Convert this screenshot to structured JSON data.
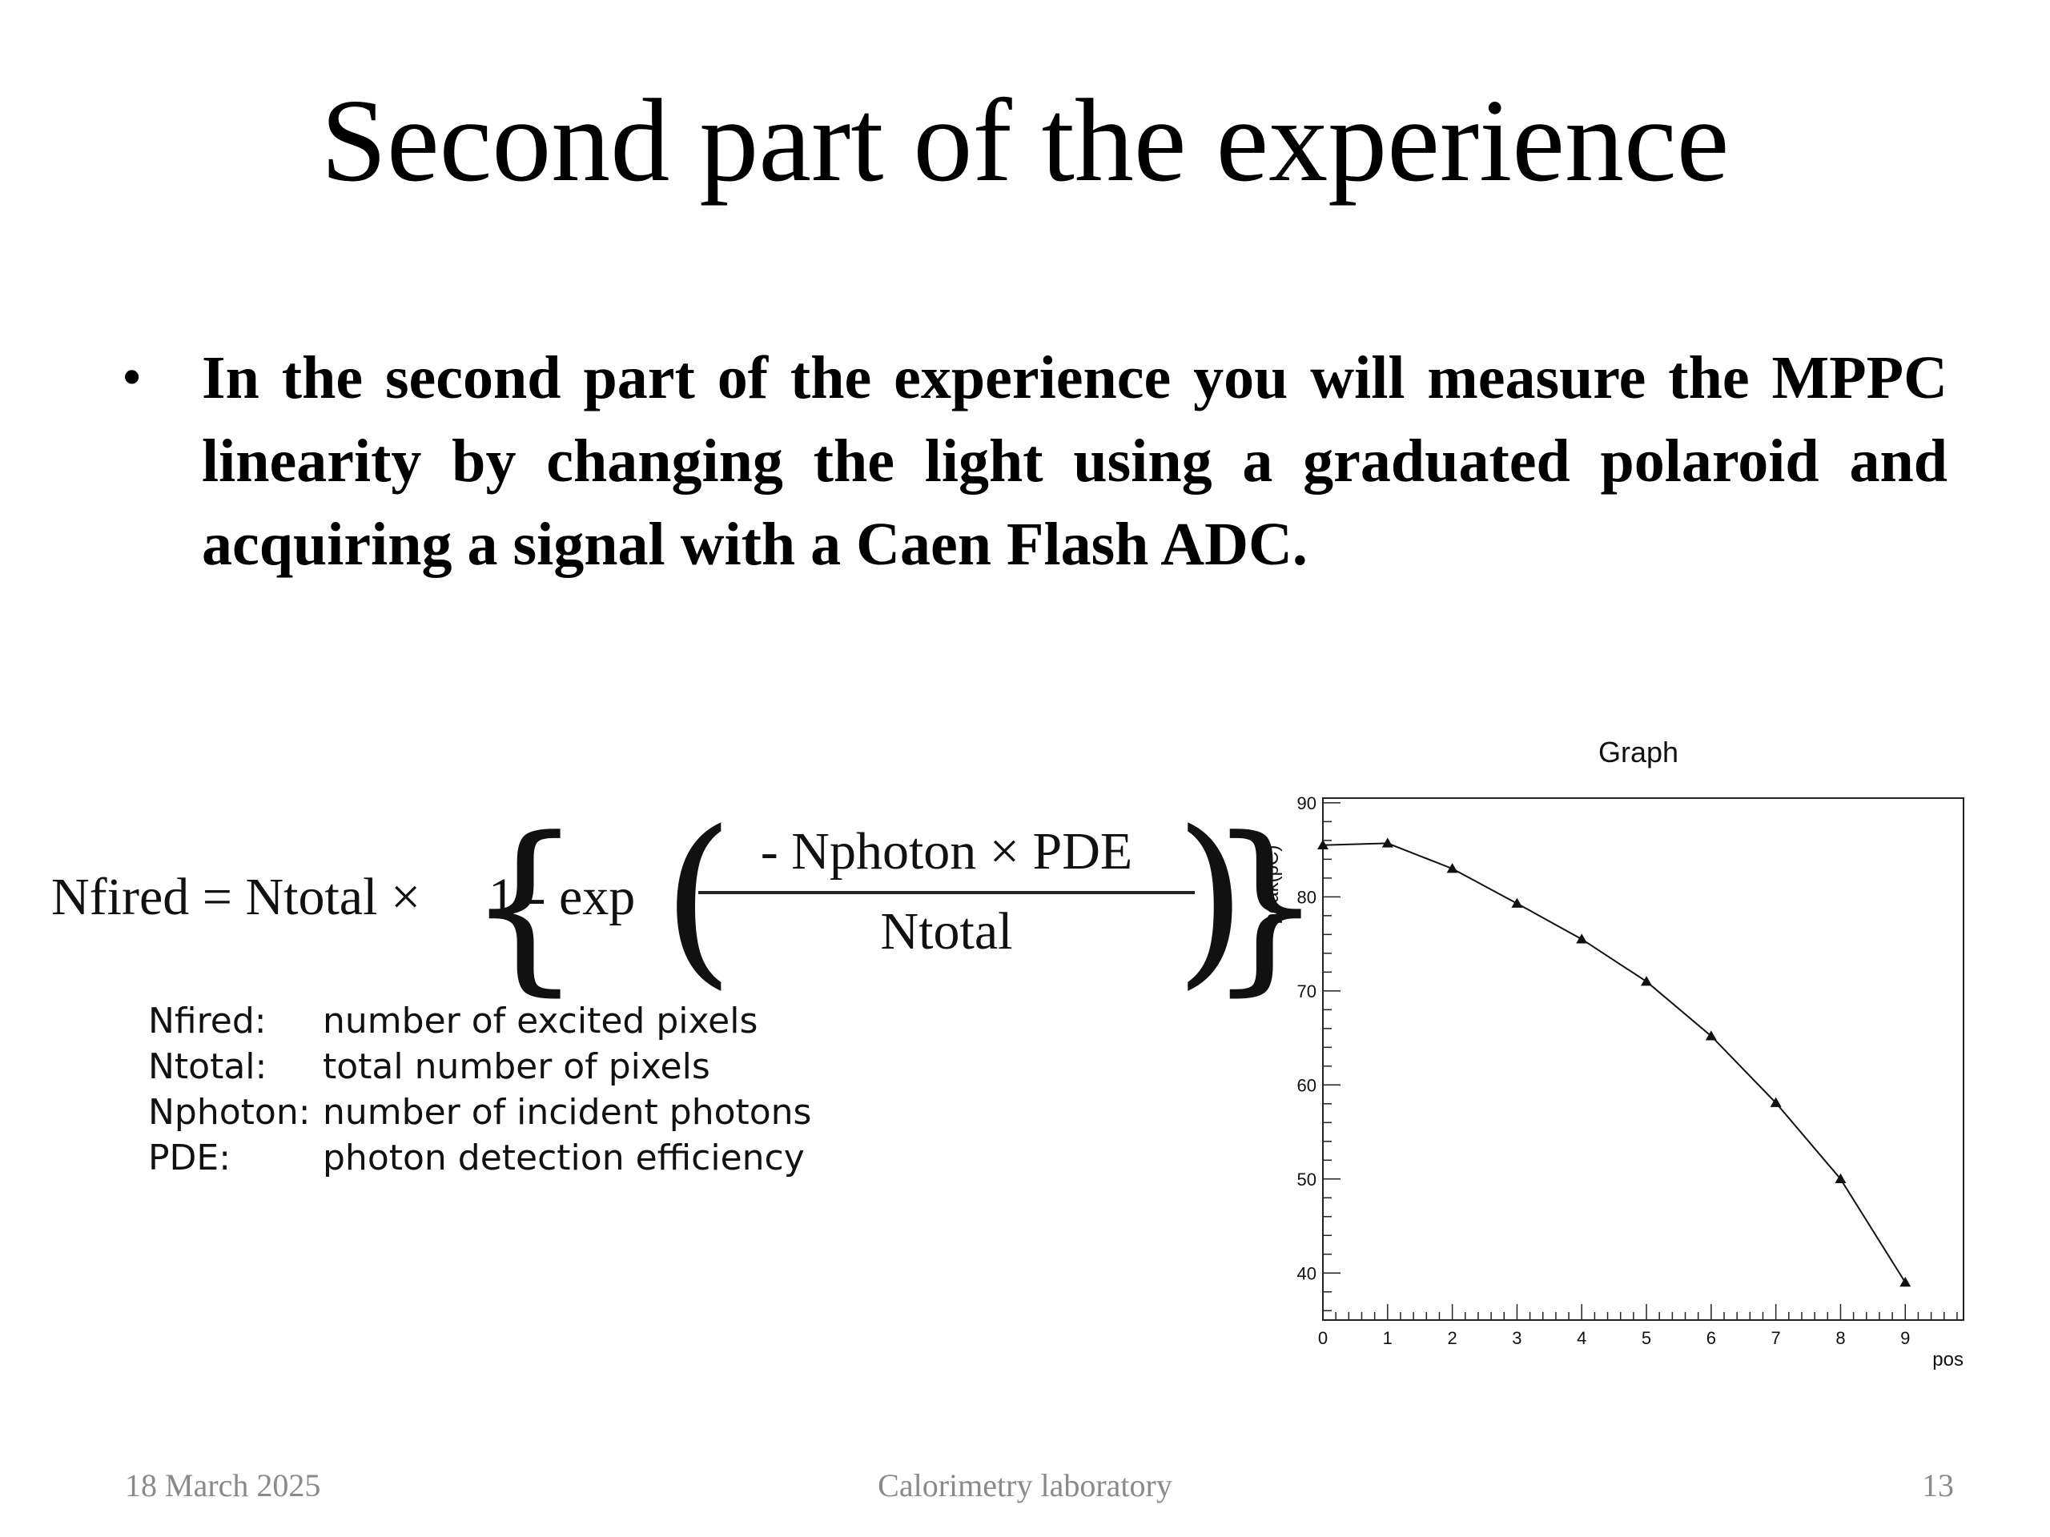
{
  "slide": {
    "title": "Second part of the experience",
    "bullet": "In the second part of the experience you will measure the MPPC  linearity by changing the light using a graduated polaroid and acquiring a signal with a Caen Flash ADC.",
    "formula": {
      "lhs": "Nfired = Ntotal ×",
      "exp_part": "1 - exp",
      "numerator": "- Nphoton  ×  PDE",
      "denominator": "Ntotal"
    },
    "definitions": [
      {
        "term": "Nfired:",
        "desc": "number of excited pixels"
      },
      {
        "term": "Ntotal:",
        "desc": "total number of pixels"
      },
      {
        "term": "Nphoton:",
        "desc": "number of incident photons"
      },
      {
        "term": "PDE:",
        "desc": "photon detection efficiency"
      }
    ],
    "footer": {
      "date": "18 March 2025",
      "center": "Calorimetry laboratory",
      "page": "13"
    }
  },
  "chart_data": {
    "type": "line",
    "title": "Graph",
    "xlabel": "pos",
    "ylabel": "peak(pC)",
    "x": [
      0,
      1,
      2,
      3,
      4,
      5,
      6,
      7,
      8,
      9
    ],
    "values": [
      85.5,
      85.7,
      83.0,
      79.3,
      75.5,
      71.0,
      65.2,
      58.1,
      50.0,
      39.0
    ],
    "xlim": [
      0,
      9.9
    ],
    "ylim": [
      35,
      90.5
    ],
    "xticks": [
      "0",
      "1",
      "2",
      "3",
      "4",
      "5",
      "6",
      "7",
      "8",
      "9"
    ],
    "yticks": [
      "40",
      "50",
      "60",
      "70",
      "80",
      "90"
    ],
    "grid": false,
    "marker": "triangle"
  }
}
